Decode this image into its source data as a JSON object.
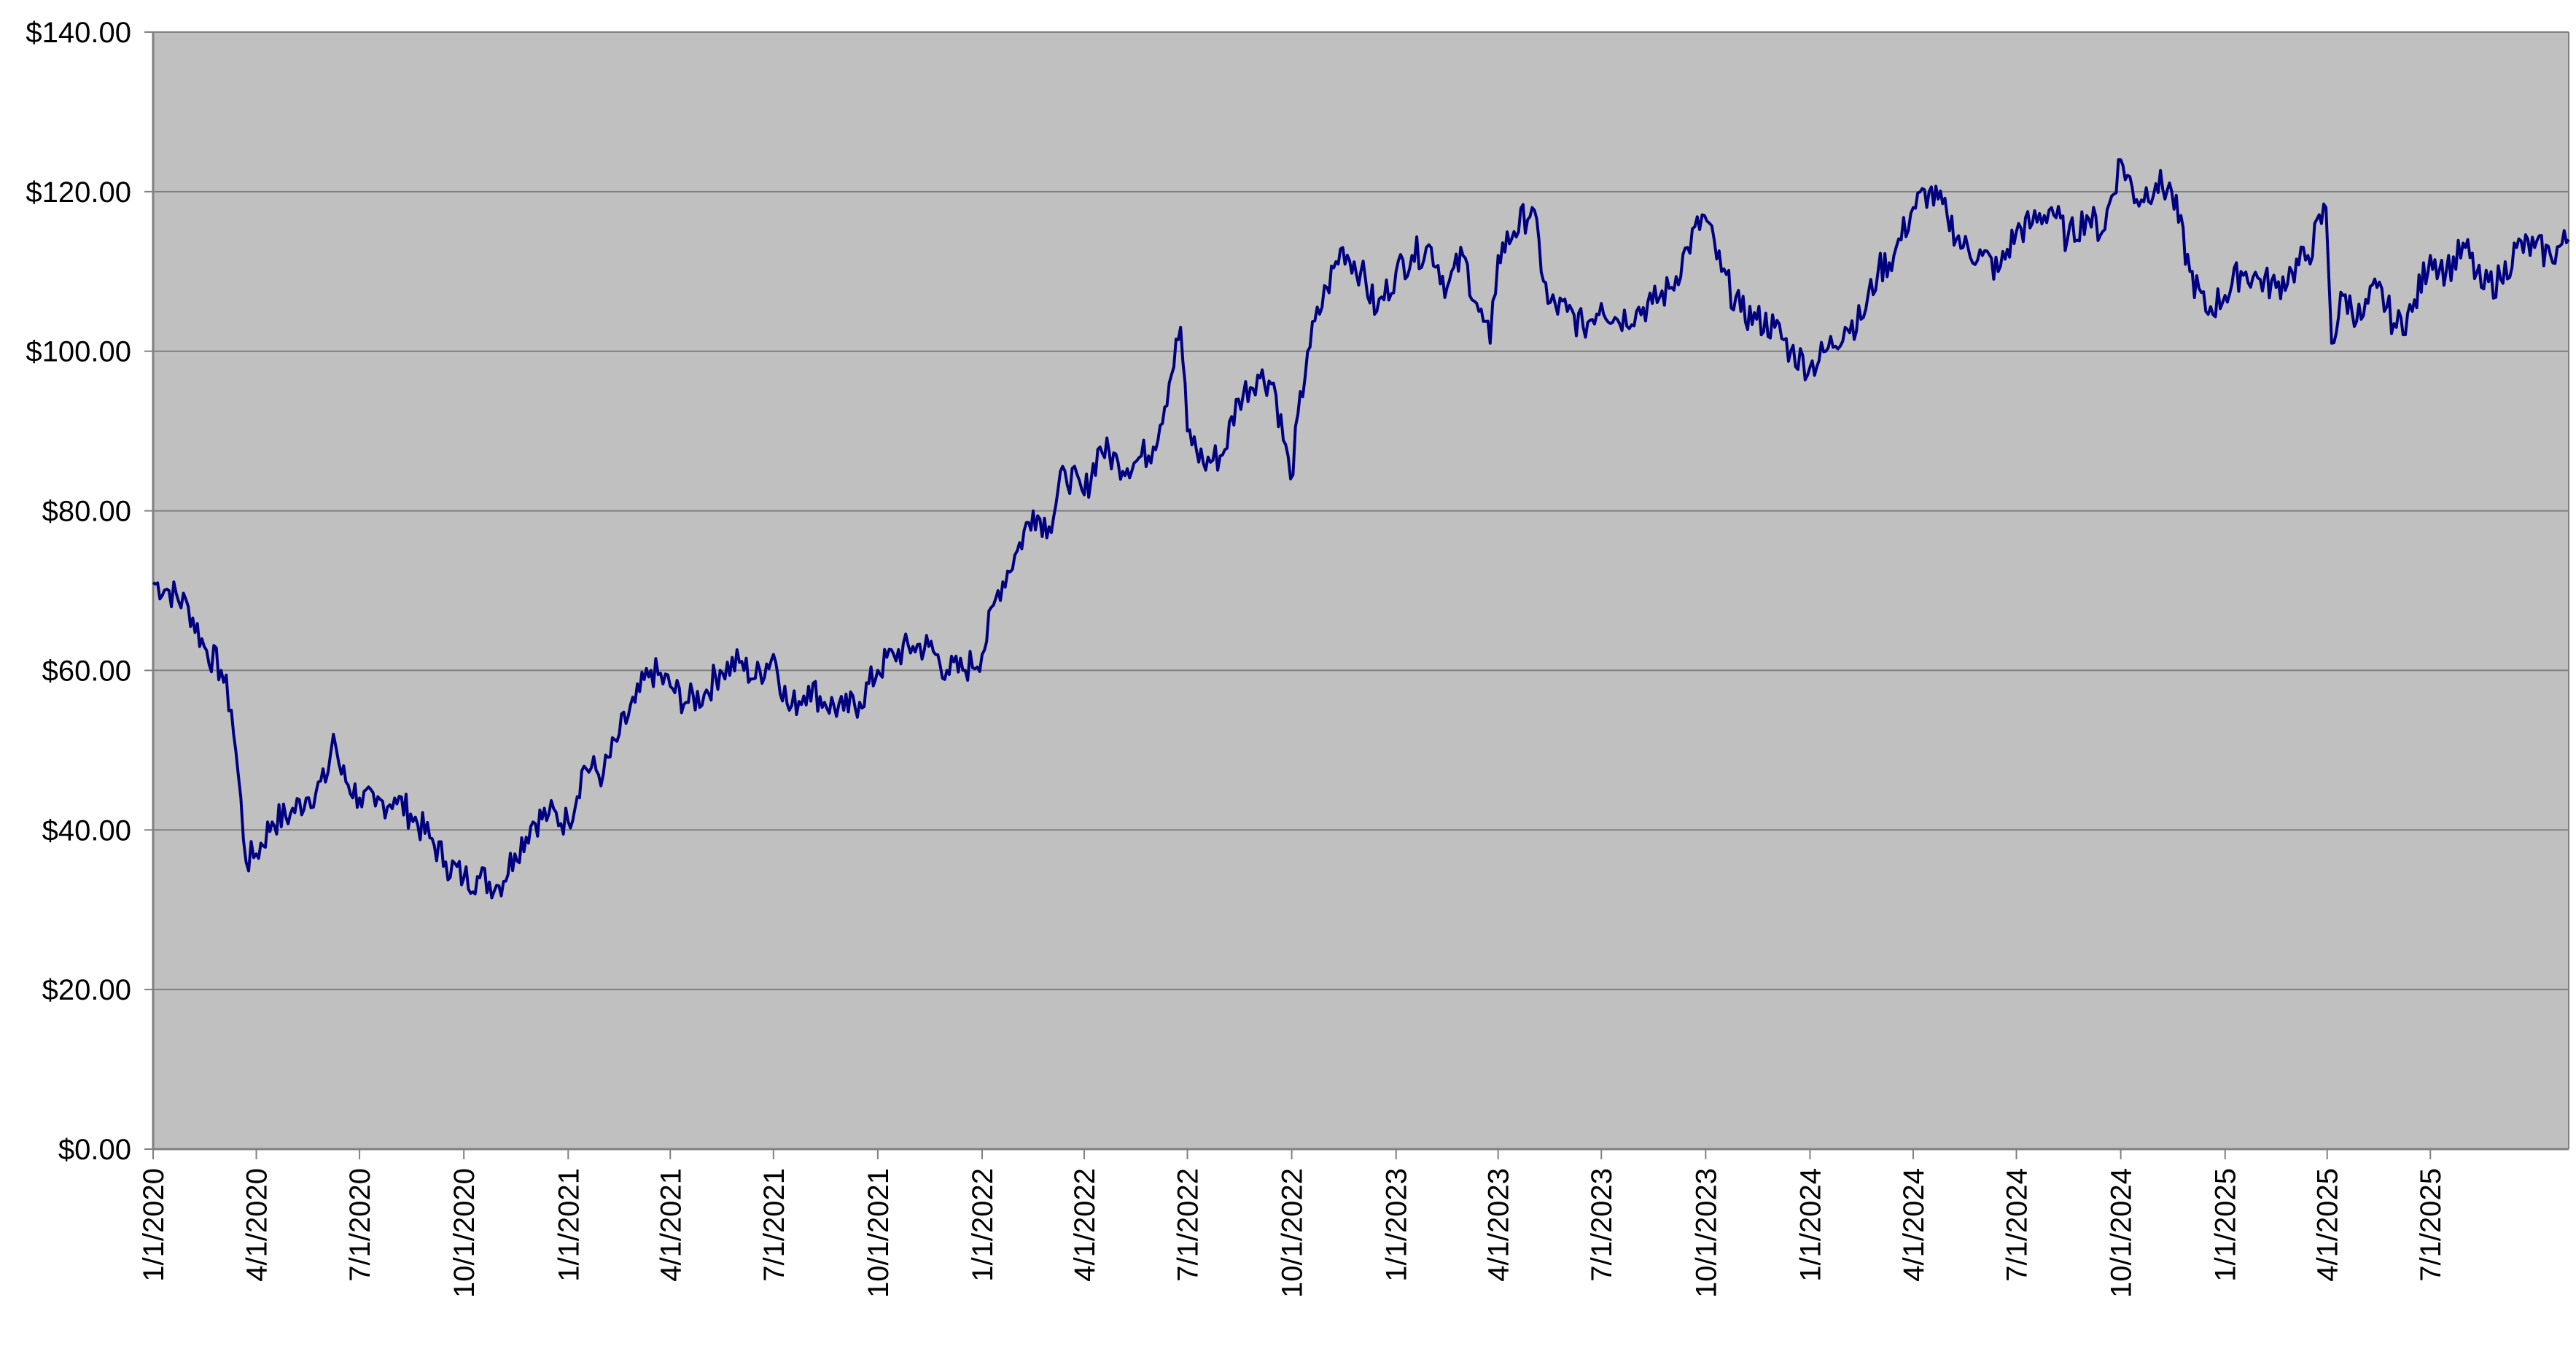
{
  "chart_data": {
    "type": "line",
    "title": "",
    "xlabel": "",
    "ylabel": "",
    "ylim": [
      0,
      140
    ],
    "xlim": [
      "2020-01-01",
      "2025-10-31"
    ],
    "grid": "horizontal",
    "legend": "none",
    "colors": {
      "plot_background": "#c0c0c0",
      "line": "#000080",
      "gridline": "#7f7f7f",
      "axis": "#808080"
    },
    "y_ticks": [
      {
        "value": 0,
        "label": "$0.00"
      },
      {
        "value": 20,
        "label": "$20.00"
      },
      {
        "value": 40,
        "label": "$40.00"
      },
      {
        "value": 60,
        "label": "$60.00"
      },
      {
        "value": 80,
        "label": "$80.00"
      },
      {
        "value": 100,
        "label": "$100.00"
      },
      {
        "value": 120,
        "label": "$120.00"
      },
      {
        "value": 140,
        "label": "$140.00"
      }
    ],
    "x_ticks": [
      {
        "date": "2020-01-01",
        "label": "1/1/2020"
      },
      {
        "date": "2020-04-01",
        "label": "4/1/2020"
      },
      {
        "date": "2020-07-01",
        "label": "7/1/2020"
      },
      {
        "date": "2020-10-01",
        "label": "10/1/2020"
      },
      {
        "date": "2021-01-01",
        "label": "1/1/2021"
      },
      {
        "date": "2021-04-01",
        "label": "4/1/2021"
      },
      {
        "date": "2021-07-01",
        "label": "7/1/2021"
      },
      {
        "date": "2021-10-01",
        "label": "10/1/2021"
      },
      {
        "date": "2022-01-01",
        "label": "1/1/2022"
      },
      {
        "date": "2022-04-01",
        "label": "4/1/2022"
      },
      {
        "date": "2022-07-01",
        "label": "7/1/2022"
      },
      {
        "date": "2022-10-01",
        "label": "10/1/2022"
      },
      {
        "date": "2023-01-01",
        "label": "1/1/2023"
      },
      {
        "date": "2023-04-01",
        "label": "4/1/2023"
      },
      {
        "date": "2023-07-01",
        "label": "7/1/2023"
      },
      {
        "date": "2023-10-01",
        "label": "10/1/2023"
      },
      {
        "date": "2024-01-01",
        "label": "1/1/2024"
      },
      {
        "date": "2024-04-01",
        "label": "4/1/2024"
      },
      {
        "date": "2024-07-01",
        "label": "7/1/2024"
      },
      {
        "date": "2024-10-01",
        "label": "10/1/2024"
      },
      {
        "date": "2025-01-01",
        "label": "1/1/2025"
      },
      {
        "date": "2025-04-01",
        "label": "4/1/2025"
      },
      {
        "date": "2025-07-01",
        "label": "7/1/2025"
      }
    ],
    "series": [
      {
        "x": [
          "2020-01-01",
          "2020-01-15",
          "2020-02-01",
          "2020-02-15",
          "2020-03-01",
          "2020-03-10",
          "2020-03-16",
          "2020-03-23",
          "2020-04-01",
          "2020-04-15",
          "2020-05-01",
          "2020-05-15",
          "2020-06-01",
          "2020-06-08",
          "2020-06-15",
          "2020-07-01",
          "2020-07-15",
          "2020-08-01",
          "2020-08-15",
          "2020-09-01",
          "2020-09-15",
          "2020-10-01",
          "2020-10-15",
          "2020-11-01",
          "2020-11-15",
          "2020-12-01",
          "2020-12-15",
          "2021-01-01",
          "2021-01-15",
          "2021-02-01",
          "2021-02-15",
          "2021-03-01",
          "2021-03-15",
          "2021-04-01",
          "2021-04-15",
          "2021-05-01",
          "2021-05-15",
          "2021-06-01",
          "2021-06-15",
          "2021-07-01",
          "2021-07-15",
          "2021-08-01",
          "2021-08-15",
          "2021-09-01",
          "2021-09-15",
          "2021-10-01",
          "2021-10-15",
          "2021-11-01",
          "2021-11-15",
          "2021-12-01",
          "2021-12-15",
          "2022-01-01",
          "2022-01-15",
          "2022-02-01",
          "2022-02-15",
          "2022-03-01",
          "2022-03-15",
          "2022-04-01",
          "2022-04-15",
          "2022-05-01",
          "2022-05-15",
          "2022-06-01",
          "2022-06-15",
          "2022-06-25",
          "2022-07-01",
          "2022-07-15",
          "2022-08-01",
          "2022-08-15",
          "2022-09-01",
          "2022-09-15",
          "2022-09-30",
          "2022-10-15",
          "2022-11-01",
          "2022-11-15",
          "2022-12-01",
          "2022-12-15",
          "2023-01-01",
          "2023-01-15",
          "2023-02-01",
          "2023-02-15",
          "2023-03-01",
          "2023-03-15",
          "2023-03-25",
          "2023-04-01",
          "2023-04-15",
          "2023-05-01",
          "2023-05-15",
          "2023-06-01",
          "2023-06-15",
          "2023-07-01",
          "2023-07-15",
          "2023-08-01",
          "2023-08-15",
          "2023-09-01",
          "2023-09-15",
          "2023-09-30",
          "2023-10-15",
          "2023-11-01",
          "2023-11-15",
          "2023-12-01",
          "2023-12-15",
          "2024-01-01",
          "2024-01-15",
          "2024-02-01",
          "2024-02-15",
          "2024-03-01",
          "2024-03-15",
          "2024-04-01",
          "2024-04-15",
          "2024-05-01",
          "2024-05-15",
          "2024-06-01",
          "2024-06-15",
          "2024-07-01",
          "2024-07-15",
          "2024-08-01",
          "2024-08-15",
          "2024-09-01",
          "2024-09-15",
          "2024-10-01",
          "2024-10-15",
          "2024-11-01",
          "2024-11-15",
          "2024-12-01",
          "2024-12-15",
          "2025-01-01",
          "2025-01-15",
          "2025-02-01",
          "2025-02-15",
          "2025-03-01",
          "2025-03-15",
          "2025-03-31",
          "2025-04-05",
          "2025-04-15",
          "2025-05-01",
          "2025-05-15",
          "2025-06-01",
          "2025-06-15",
          "2025-07-01",
          "2025-07-15",
          "2025-08-01",
          "2025-08-15",
          "2025-09-01",
          "2025-09-15",
          "2025-10-01",
          "2025-10-15",
          "2025-10-31"
        ],
        "values": [
          71,
          70,
          68,
          63,
          60,
          55,
          47,
          36,
          37,
          41,
          42,
          44,
          46,
          52,
          47,
          44,
          43,
          44,
          42,
          39,
          36,
          34,
          34,
          33,
          37,
          41,
          42,
          41,
          48,
          47,
          52,
          56,
          60,
          58,
          56,
          57,
          60,
          61,
          59,
          62,
          55,
          58,
          56,
          55,
          56,
          60,
          62,
          63,
          63,
          60,
          60,
          62,
          70,
          75,
          80,
          78,
          85,
          82,
          88,
          86,
          86,
          88,
          96,
          103,
          90,
          86,
          87,
          94,
          97,
          96,
          84,
          100,
          108,
          113,
          110,
          105,
          110,
          112,
          113,
          108,
          112,
          105,
          101,
          112,
          115,
          118,
          106,
          105,
          103,
          106,
          104,
          105,
          106,
          108,
          113,
          117,
          110,
          105,
          104,
          103,
          100,
          98,
          100,
          103,
          104,
          110,
          112,
          118,
          120,
          117,
          113,
          112,
          110,
          115,
          116,
          118,
          114,
          117,
          115,
          124,
          119,
          121,
          120,
          110,
          105,
          107,
          110,
          109,
          108,
          110,
          112,
          118,
          101,
          107,
          104,
          108,
          103,
          105,
          112,
          110,
          113,
          108,
          109,
          113,
          113,
          112,
          114
        ]
      }
    ]
  }
}
